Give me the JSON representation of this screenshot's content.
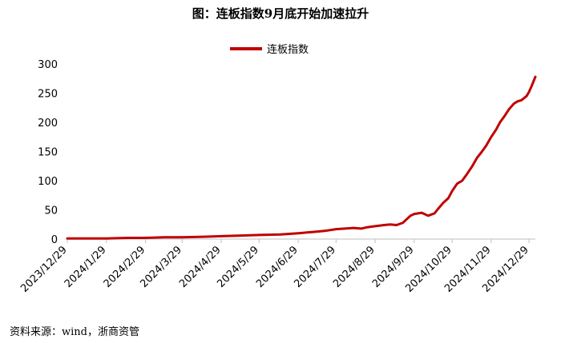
{
  "chart_data": {
    "type": "line",
    "title": "图：连板指数9月底开始加速拉升",
    "source": "资料来源：wind，浙商资管",
    "legend": {
      "position": "top-center"
    },
    "ylim": [
      0,
      300
    ],
    "yticks": [
      0,
      50,
      100,
      150,
      200,
      250,
      300
    ],
    "xticks": [
      "2023/12/29",
      "2024/1/29",
      "2024/2/29",
      "2024/3/29",
      "2024/4/29",
      "2024/5/29",
      "2024/6/29",
      "2024/7/29",
      "2024/8/29",
      "2024/9/29",
      "2024/10/29",
      "2024/11/29",
      "2024/12/29"
    ],
    "grid": false,
    "colors": {
      "series": "#c00000",
      "axis": "#bfbfbf"
    },
    "series": [
      {
        "name": "连板指数",
        "x": [
          "2023-12-29",
          "2024-01-15",
          "2024-01-29",
          "2024-02-15",
          "2024-02-29",
          "2024-03-15",
          "2024-03-29",
          "2024-04-15",
          "2024-04-29",
          "2024-05-15",
          "2024-05-29",
          "2024-06-15",
          "2024-06-29",
          "2024-07-10",
          "2024-07-20",
          "2024-07-29",
          "2024-08-05",
          "2024-08-12",
          "2024-08-18",
          "2024-08-22",
          "2024-08-29",
          "2024-09-05",
          "2024-09-10",
          "2024-09-15",
          "2024-09-20",
          "2024-09-26",
          "2024-09-29",
          "2024-10-05",
          "2024-10-10",
          "2024-10-15",
          "2024-10-18",
          "2024-10-22",
          "2024-10-26",
          "2024-10-29",
          "2024-11-02",
          "2024-11-06",
          "2024-11-10",
          "2024-11-14",
          "2024-11-18",
          "2024-11-21",
          "2024-11-25",
          "2024-11-29",
          "2024-12-03",
          "2024-12-06",
          "2024-12-10",
          "2024-12-13",
          "2024-12-17",
          "2024-12-20",
          "2024-12-23",
          "2024-12-27",
          "2024-12-29",
          "2024-12-31",
          "2025-01-03"
        ],
        "values": [
          1,
          1,
          1,
          2,
          2,
          3,
          3,
          4,
          5,
          6,
          7,
          8,
          10,
          12,
          14,
          17,
          18,
          19,
          18,
          20,
          22,
          24,
          25,
          24,
          28,
          40,
          43,
          45,
          40,
          44,
          52,
          62,
          70,
          82,
          95,
          100,
          112,
          125,
          140,
          148,
          160,
          175,
          188,
          200,
          212,
          222,
          232,
          236,
          238,
          245,
          252,
          262,
          278
        ]
      }
    ]
  }
}
